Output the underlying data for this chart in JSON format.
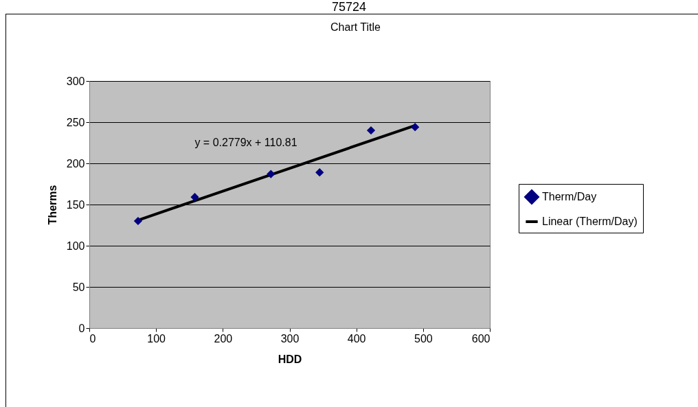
{
  "chart_data": {
    "type": "scatter",
    "title": "Chart Title",
    "xlabel": "HDD",
    "ylabel": "Therms",
    "annotations": [
      "75724",
      "y = 0.2779x + 110.81"
    ],
    "series": [
      {
        "name": "Therm/Day",
        "color": "#000080",
        "marker": "diamond",
        "x": [
          73,
          158,
          272,
          345,
          422,
          488
        ],
        "values": [
          130,
          159,
          187,
          189,
          240,
          244
        ]
      },
      {
        "name": "Linear (Therm/Day)",
        "type": "line",
        "color": "#000000",
        "x": [
          73,
          488
        ],
        "values": [
          131,
          246
        ]
      }
    ],
    "xlim": [
      0,
      600
    ],
    "xticks": [
      0,
      100,
      200,
      300,
      400,
      500,
      600
    ],
    "ylim": [
      0,
      300
    ],
    "yticks": [
      0,
      50,
      100,
      150,
      200,
      250,
      300
    ],
    "grid": "y",
    "legend": "right"
  }
}
